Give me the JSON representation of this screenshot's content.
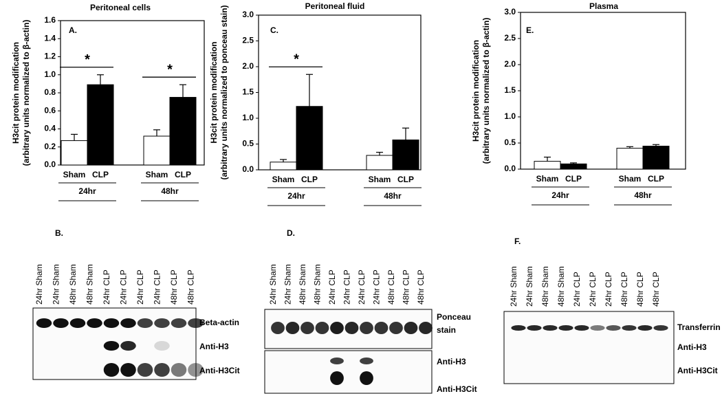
{
  "chart_data": [
    {
      "type": "bar",
      "title": "Peritoneal cells",
      "panel": "A.",
      "ylabel": [
        "H3cit protein modification",
        "(arbitrary units normalized to β-actin)"
      ],
      "categories": [
        "24hr",
        "48hr"
      ],
      "series": [
        {
          "name": "Sham",
          "color": "#ffffff",
          "values": [
            0.27,
            0.32
          ],
          "errors": [
            0.07,
            0.07
          ]
        },
        {
          "name": "CLP",
          "color": "#000000",
          "values": [
            0.89,
            0.75
          ],
          "errors": [
            0.11,
            0.14
          ]
        }
      ],
      "ylim": [
        0,
        1.6
      ],
      "yticks": [
        {
          "value": 0,
          "label": "0.0"
        },
        0.2,
        0.4,
        0.6,
        0.8,
        {
          "value": 1,
          "label": "1.0"
        },
        1.2,
        1.4,
        1.6
      ],
      "annotations": [
        {
          "text": "*",
          "category": 0
        },
        {
          "text": "*",
          "category": 1
        }
      ]
    },
    {
      "type": "bar",
      "title": "Peritoneal fluid",
      "panel": "C.",
      "ylabel": [
        "H3cit protein modification",
        "(arbitrary units normalized to ponceau stain)"
      ],
      "categories": [
        "24hr",
        "48hr"
      ],
      "series": [
        {
          "name": "Sham",
          "color": "#ffffff",
          "values": [
            0.15,
            0.28
          ],
          "errors": [
            0.05,
            0.06
          ]
        },
        {
          "name": "CLP",
          "color": "#000000",
          "values": [
            1.23,
            0.58
          ],
          "errors": [
            0.62,
            0.23
          ]
        }
      ],
      "ylim": [
        0,
        3
      ],
      "yticks": [
        {
          "value": 0,
          "label": "0.0"
        },
        0.5,
        {
          "value": 1,
          "label": "1.0"
        },
        1.5,
        {
          "value": 2,
          "label": "2.0"
        },
        2.5,
        {
          "value": 3,
          "label": "3.0"
        }
      ],
      "annotations": [
        {
          "text": "*",
          "category": 0
        }
      ]
    },
    {
      "type": "bar",
      "title": "Plasma",
      "panel": "E.",
      "ylabel": [
        "H3cit protein modification",
        "(arbitrary units normalized to β-actin)"
      ],
      "categories": [
        "24hr",
        "48hr"
      ],
      "series": [
        {
          "name": "Sham",
          "color": "#ffffff",
          "values": [
            0.15,
            0.4
          ],
          "errors": [
            0.08,
            0.03
          ]
        },
        {
          "name": "CLP",
          "color": "#000000",
          "values": [
            0.1,
            0.44
          ],
          "errors": [
            0.02,
            0.03
          ]
        }
      ],
      "ylim": [
        0,
        3
      ],
      "yticks": [
        {
          "value": 0,
          "label": "0.0"
        },
        0.5,
        {
          "value": 1,
          "label": "1.0"
        },
        1.5,
        {
          "value": 2,
          "label": "2.0"
        },
        2.5,
        {
          "value": 3,
          "label": "3.0"
        }
      ],
      "annotations": []
    }
  ],
  "blots": [
    {
      "panel": "B.",
      "lanes": [
        "24hr Sham",
        "24hr Sham",
        "48hr Sham",
        "48hr Sham",
        "24hr CLP",
        "24hr CLP",
        "24hr CLP",
        "24hr CLP",
        "48hr CLP",
        "48hr CLP"
      ],
      "bands": [
        "Beta-actin",
        "Anti-H3",
        "Anti-H3Cit"
      ]
    },
    {
      "panel": "D.",
      "lanes": [
        "24hr Sham",
        "24hr Sham",
        "48hr Sham",
        "48hr Sham",
        "24hr CLP",
        "24hr CLP",
        "24hr CLP",
        "24hr CLP",
        "48hr CLP",
        "48hr CLP",
        "48hr CLP"
      ],
      "bands": [
        "Ponceau",
        "stain",
        "Anti-H3",
        "Anti-H3Cit"
      ]
    },
    {
      "panel": "F.",
      "lanes": [
        "24hr Sham",
        "24hr Sham",
        "48hr Sham",
        "48hr Sham",
        "24hr CLP",
        "24hr CLP",
        "24hr CLP",
        "48hr CLP",
        "48hr CLP",
        "48hr CLP"
      ],
      "bands": [
        "Transferrin",
        "Anti-H3",
        "Anti-H3Cit"
      ]
    }
  ]
}
